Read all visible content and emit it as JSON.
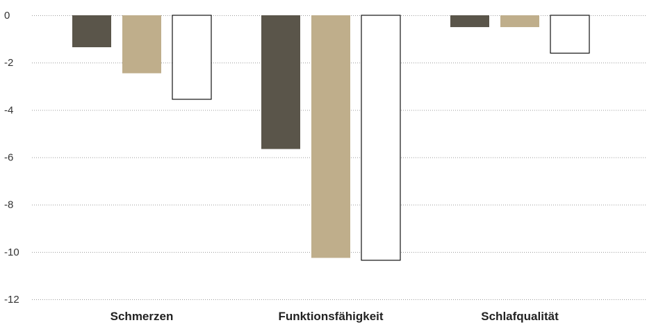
{
  "chart_data": {
    "type": "bar",
    "categories": [
      "Schmerzen",
      "Funktionsfähigkeit",
      "Schlafqualität"
    ],
    "series": [
      {
        "color": "#5a554a",
        "values": [
          -1.35,
          -5.65,
          -0.5
        ]
      },
      {
        "color": "#bfae8b",
        "values": [
          -2.45,
          -10.25,
          -0.5
        ]
      },
      {
        "color": "#ffffff",
        "stroke": "#111111",
        "values": [
          -3.55,
          -10.35,
          -1.6
        ]
      }
    ],
    "yticks": [
      0,
      -2,
      -4,
      -6,
      -8,
      -10,
      -12
    ],
    "ylim": [
      -12,
      0
    ],
    "grid": true,
    "legend": "none"
  }
}
